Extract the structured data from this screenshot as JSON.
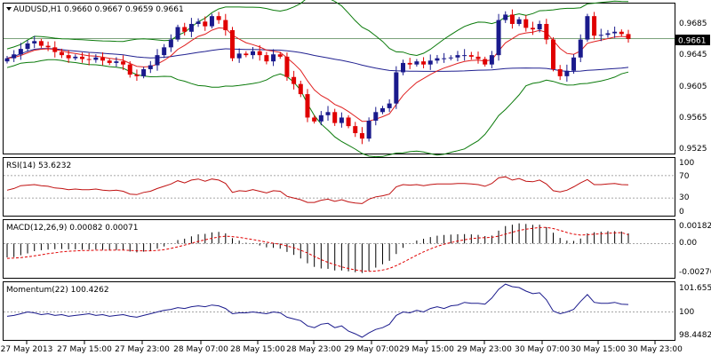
{
  "header": {
    "symbol": "AUDUSD,H1",
    "ohlc": "0.9660 0.9667 0.9659 0.9661"
  },
  "price_panel": {
    "last_price": "0.9661",
    "y_ticks": [
      "0.9685",
      "0.9645",
      "0.9605",
      "0.9565",
      "0.9525"
    ]
  },
  "rsi_panel": {
    "label": "RSI(14) 53.6232",
    "y_ticks": [
      "100",
      "70",
      "30",
      "0"
    ]
  },
  "macd_panel": {
    "label": "MACD(12,26,9) 0.00082 0.00071",
    "y_ticks": [
      "0.00182",
      "0.00",
      "-0.00270"
    ]
  },
  "momentum_panel": {
    "label": "Momentum(22) 100.4262",
    "y_ticks": [
      "101.6557",
      "100",
      "98.4482"
    ]
  },
  "x_axis": {
    "labels": [
      "27 May 2013",
      "27 May 15:00",
      "27 May 23:00",
      "28 May 07:00",
      "28 May 15:00",
      "28 May 23:00",
      "29 May 07:00",
      "29 May 15:00",
      "29 May 23:00",
      "30 May 07:00",
      "30 May 15:00",
      "30 May 23:00"
    ]
  },
  "colors": {
    "bull": "#1a1a8c",
    "bear": "#e00000",
    "ma_red": "#e02020",
    "ma_blue": "#202090",
    "bands": "#0a7a0a",
    "rsi": "#c01010",
    "momentum": "#1a1a8c",
    "macd_hist": "#000000",
    "macd_signal": "#e00000"
  },
  "chart_data": {
    "type": "candlestick",
    "title": "AUDUSD,H1",
    "indicators": [
      "RSI(14)",
      "MACD(12,26,9)",
      "Momentum(22)",
      "Bollinger Bands",
      "Moving Averages"
    ],
    "price_ylim": [
      0.9515,
      0.9705
    ],
    "close": [
      0.9636,
      0.9641,
      0.9648,
      0.9655,
      0.9658,
      0.9652,
      0.965,
      0.9644,
      0.964,
      0.9636,
      0.9638,
      0.9635,
      0.9634,
      0.9637,
      0.9633,
      0.963,
      0.9632,
      0.9628,
      0.9615,
      0.9613,
      0.9622,
      0.9627,
      0.964,
      0.965,
      0.966,
      0.9676,
      0.967,
      0.968,
      0.9683,
      0.9677,
      0.969,
      0.9685,
      0.9672,
      0.9636,
      0.9642,
      0.964,
      0.9645,
      0.964,
      0.9632,
      0.9641,
      0.9638,
      0.9612,
      0.9603,
      0.959,
      0.956,
      0.9555,
      0.9563,
      0.9567,
      0.9553,
      0.956,
      0.9549,
      0.954,
      0.9533,
      0.9556,
      0.9567,
      0.9572,
      0.9578,
      0.9618,
      0.963,
      0.9628,
      0.9632,
      0.9628,
      0.9633,
      0.9636,
      0.9636,
      0.9637,
      0.964,
      0.964,
      0.9638,
      0.9635,
      0.9628,
      0.964,
      0.9685,
      0.9692,
      0.968,
      0.9686,
      0.9675,
      0.9673,
      0.968,
      0.966,
      0.9622,
      0.9613,
      0.962,
      0.9637,
      0.966,
      0.969,
      0.9665,
      0.9666,
      0.9668,
      0.967,
      0.9667,
      0.9661
    ],
    "rsi": {
      "ylim": [
        0,
        100
      ],
      "levels": [
        70,
        30
      ],
      "values": [
        44,
        47,
        52,
        53,
        54,
        52,
        51,
        48,
        47,
        45,
        46,
        45,
        45,
        46,
        44,
        43,
        44,
        42,
        37,
        36,
        40,
        42,
        47,
        51,
        55,
        61,
        57,
        62,
        64,
        60,
        64,
        62,
        56,
        40,
        43,
        42,
        45,
        42,
        39,
        43,
        42,
        33,
        30,
        27,
        22,
        22,
        26,
        28,
        24,
        27,
        23,
        21,
        20,
        28,
        32,
        34,
        37,
        50,
        54,
        53,
        54,
        52,
        54,
        55,
        55,
        55,
        56,
        56,
        55,
        54,
        51,
        56,
        66,
        68,
        62,
        65,
        60,
        59,
        62,
        55,
        43,
        41,
        44,
        50,
        57,
        63,
        54,
        54,
        55,
        56,
        54,
        53.6
      ]
    },
    "macd": {
      "ylim": [
        -0.0027,
        0.00182
      ],
      "histogram": [
        -0.00112,
        -0.0011,
        -0.00095,
        -0.0008,
        -0.00062,
        -0.00054,
        -0.00049,
        -0.00046,
        -0.00045,
        -0.00047,
        -0.00047,
        -0.00049,
        -0.0005,
        -0.00048,
        -0.00051,
        -0.00053,
        -0.00052,
        -0.00054,
        -0.00065,
        -0.00072,
        -0.00066,
        -0.00059,
        -0.00042,
        -0.00024,
        -2e-05,
        0.00028,
        0.00039,
        0.00058,
        0.00074,
        0.00078,
        0.0009,
        0.00094,
        0.00082,
        0.00043,
        0.00023,
        6e-05,
        -4e-05,
        -0.00016,
        -0.00031,
        -0.00035,
        -0.00042,
        -0.00068,
        -0.00092,
        -0.00121,
        -0.0016,
        -0.00189,
        -0.00202,
        -0.00205,
        -0.00218,
        -0.00218,
        -0.00225,
        -0.00232,
        -0.00238,
        -0.00221,
        -0.00195,
        -0.00168,
        -0.0014,
        -0.00085,
        -0.00035,
        -2e-05,
        0.00024,
        0.00038,
        0.00052,
        0.00063,
        0.00069,
        0.00072,
        0.00075,
        0.00076,
        0.00074,
        0.0007,
        0.0006,
        0.00064,
        0.00104,
        0.00141,
        0.00152,
        0.00163,
        0.00158,
        0.00151,
        0.00152,
        0.00132,
        0.00087,
        0.00045,
        0.00023,
        0.00021,
        0.0004,
        0.00082,
        0.00091,
        0.00096,
        0.001,
        0.001,
        0.00097,
        0.00082
      ],
      "signal": [
        -0.0012,
        -0.00118,
        -0.00114,
        -0.00108,
        -0.001,
        -0.00091,
        -0.00082,
        -0.00075,
        -0.00068,
        -0.00063,
        -0.0006,
        -0.00057,
        -0.00056,
        -0.00054,
        -0.00054,
        -0.00054,
        -0.00053,
        -0.00053,
        -0.00056,
        -0.00059,
        -0.0006,
        -0.00059,
        -0.00056,
        -0.0005,
        -0.0004,
        -0.00027,
        -0.00013,
        2e-05,
        0.00017,
        0.0003,
        0.00042,
        0.00053,
        0.00059,
        0.00056,
        0.0005,
        0.00041,
        0.00032,
        0.00022,
        0.00011,
        2e-05,
        -7e-05,
        -0.0002,
        -0.00035,
        -0.00054,
        -0.00077,
        -0.00104,
        -0.0013,
        -0.00152,
        -0.00172,
        -0.00189,
        -0.00202,
        -0.00213,
        -0.00221,
        -0.00225,
        -0.00223,
        -0.00215,
        -0.00202,
        -0.00179,
        -0.00152,
        -0.00123,
        -0.00094,
        -0.00068,
        -0.00044,
        -0.00023,
        -6e-05,
        8e-05,
        0.0002,
        0.0003,
        0.00039,
        0.00045,
        0.00047,
        0.0005,
        0.0006,
        0.00076,
        0.00091,
        0.00106,
        0.00116,
        0.00123,
        0.00129,
        0.0013,
        0.00121,
        0.00106,
        0.00089,
        0.00075,
        0.00068,
        0.00071,
        0.00075,
        0.00079,
        0.00083,
        0.00086,
        0.00088,
        0.00071
      ]
    },
    "momentum": {
      "ylim": [
        98.4482,
        101.6557
      ],
      "level": 100,
      "values": [
        99.75,
        99.8,
        99.9,
        100.0,
        99.95,
        99.85,
        99.9,
        99.8,
        99.85,
        99.75,
        99.8,
        99.85,
        99.9,
        99.8,
        99.85,
        99.75,
        99.8,
        99.85,
        99.75,
        99.7,
        99.8,
        99.9,
        100.0,
        100.1,
        100.15,
        100.25,
        100.2,
        100.3,
        100.35,
        100.3,
        100.4,
        100.35,
        100.2,
        99.9,
        99.95,
        99.95,
        100.0,
        99.95,
        99.9,
        100.0,
        99.95,
        99.7,
        99.6,
        99.5,
        99.2,
        99.1,
        99.3,
        99.35,
        99.1,
        99.2,
        98.9,
        98.75,
        98.55,
        98.8,
        99.0,
        99.1,
        99.3,
        99.8,
        100.0,
        99.95,
        100.1,
        100.0,
        100.2,
        100.3,
        100.2,
        100.35,
        100.4,
        100.55,
        100.5,
        100.5,
        100.45,
        100.8,
        101.3,
        101.6,
        101.45,
        101.4,
        101.2,
        101.05,
        101.1,
        100.7,
        100.05,
        99.9,
        100.0,
        100.15,
        100.6,
        101.0,
        100.55,
        100.5,
        100.5,
        100.55,
        100.45,
        100.43
      ]
    }
  }
}
